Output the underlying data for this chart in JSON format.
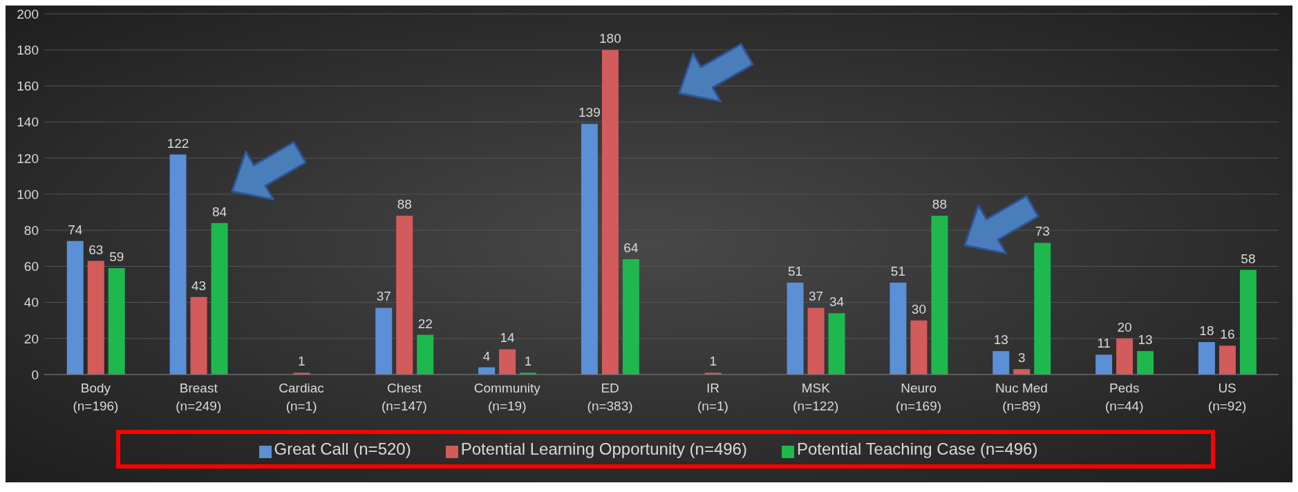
{
  "chart_data": {
    "type": "bar",
    "categories": [
      "Body\n(n=196)",
      "Breast\n(n=249)",
      "Cardiac\n(n=1)",
      "Chest\n(n=147)",
      "Community\n(n=19)",
      "ED\n(n=383)",
      "IR\n(n=1)",
      "MSK\n(n=122)",
      "Neuro\n(n=169)",
      "Nuc Med\n(n=89)",
      "Peds\n(n=44)",
      "US\n(n=92)"
    ],
    "series": [
      {
        "name": "Great Call (n=520)",
        "color": "#5b8fd6",
        "values": [
          74,
          122,
          null,
          37,
          4,
          139,
          null,
          51,
          51,
          13,
          11,
          18
        ]
      },
      {
        "name": "Potential Learning Opportunity (n=496)",
        "color": "#d45b5b",
        "values": [
          63,
          43,
          1,
          88,
          14,
          180,
          1,
          37,
          30,
          3,
          20,
          16
        ]
      },
      {
        "name": "Potential Teaching Case (n=496)",
        "color": "#1fb84f",
        "values": [
          59,
          84,
          null,
          22,
          1,
          64,
          null,
          34,
          88,
          73,
          13,
          58
        ]
      }
    ],
    "ylim": [
      0,
      200
    ],
    "yticks": [
      0,
      20,
      40,
      60,
      80,
      100,
      120,
      140,
      160,
      180,
      200
    ],
    "grid": "y",
    "legend": "bottom",
    "data_labels": true
  }
}
